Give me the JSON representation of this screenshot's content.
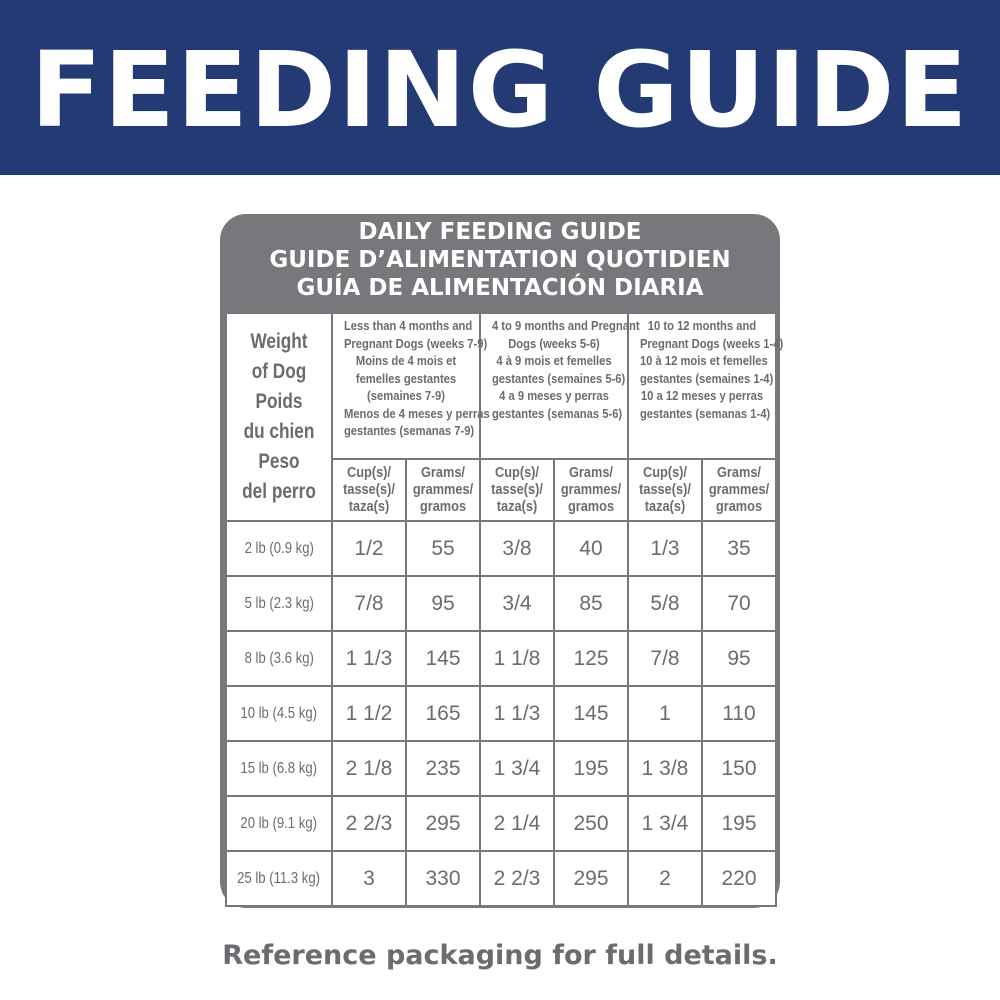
{
  "banner": {
    "title": "FEEDING GUIDE"
  },
  "table_card": {
    "title_lines": [
      "DAILY FEEDING GUIDE",
      "GUIDE D’ALIMENTATION QUOTIDIEN",
      "GUÍA DE ALIMENTACIÓN DIARIA"
    ],
    "weight_header_lines": [
      "Weight",
      "of Dog",
      "Poids",
      "du chien",
      "Peso",
      "del perro"
    ],
    "periods": [
      {
        "lines": [
          "Less than 4 months and",
          "Pregnant Dogs (weeks 7-9)",
          "Moins de 4 mois et",
          "femelles gestantes",
          "(semaines 7-9)",
          "Menos de 4 meses y perras",
          "gestantes (semanas 7-9)"
        ]
      },
      {
        "lines": [
          "4 to 9 months and Pregnant",
          "Dogs (weeks 5-6)",
          "4 à 9 mois et femelles",
          "gestantes (semaines 5-6)",
          "4 a 9 meses y perras",
          "gestantes (semanas 5-6)"
        ]
      },
      {
        "lines": [
          "10 to 12 months and",
          "Pregnant Dogs (weeks 1-4)",
          "10 à 12 mois et femelles",
          "gestantes (semaines 1-4)",
          "10 a 12 meses y perras",
          "gestantes (semanas 1-4)"
        ]
      }
    ],
    "unit_headers": {
      "cups": [
        "Cup(s)/",
        "tasse(s)/",
        "taza(s)"
      ],
      "grams": [
        "Grams/",
        "grammes/",
        "gramos"
      ]
    },
    "rows": [
      {
        "weight": "2 lb (0.9 kg)",
        "values": [
          "1/2",
          "55",
          "3/8",
          "40",
          "1/3",
          "35"
        ]
      },
      {
        "weight": "5 lb (2.3 kg)",
        "values": [
          "7/8",
          "95",
          "3/4",
          "85",
          "5/8",
          "70"
        ]
      },
      {
        "weight": "8 lb (3.6 kg)",
        "values": [
          "1 1/3",
          "145",
          "1 1/8",
          "125",
          "7/8",
          "95"
        ]
      },
      {
        "weight": "10 lb (4.5 kg)",
        "values": [
          "1 1/2",
          "165",
          "1 1/3",
          "145",
          "1",
          "110"
        ]
      },
      {
        "weight": "15 lb (6.8 kg)",
        "values": [
          "2 1/8",
          "235",
          "1 3/4",
          "195",
          "1 3/8",
          "150"
        ]
      },
      {
        "weight": "20 lb (9.1 kg)",
        "values": [
          "2 2/3",
          "295",
          "2 1/4",
          "250",
          "1 3/4",
          "195"
        ]
      },
      {
        "weight": "25 lb (11.3 kg)",
        "values": [
          "3",
          "330",
          "2 2/3",
          "295",
          "2",
          "220"
        ]
      }
    ]
  },
  "footer": {
    "note": "Reference packaging for full details."
  },
  "colors": {
    "banner": "#233a74",
    "card": "#76787c",
    "text_gray": "#6a6c70"
  }
}
